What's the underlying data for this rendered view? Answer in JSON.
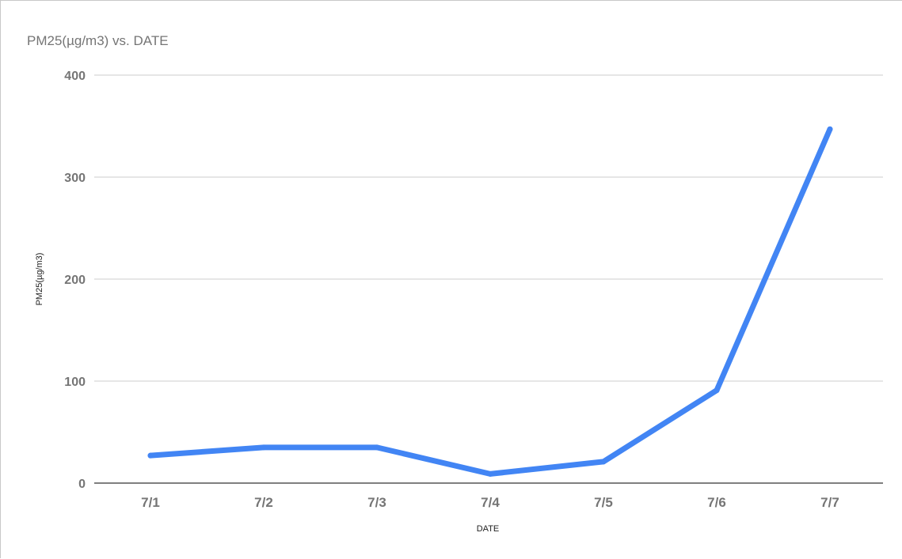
{
  "chart_data": {
    "type": "line",
    "title": "PM25(µg/m3) vs. DATE",
    "xlabel": "DATE",
    "ylabel": "PM25(µg/m3)",
    "categories": [
      "7/1",
      "7/2",
      "7/3",
      "7/4",
      "7/5",
      "7/6",
      "7/7"
    ],
    "series": [
      {
        "values": [
          27,
          35,
          35,
          9,
          21,
          91,
          347
        ],
        "color": "#4285f4"
      }
    ],
    "yticks": [
      0,
      100,
      200,
      300,
      400
    ],
    "ylim": [
      0,
      400
    ],
    "grid": true,
    "legend": "none"
  }
}
